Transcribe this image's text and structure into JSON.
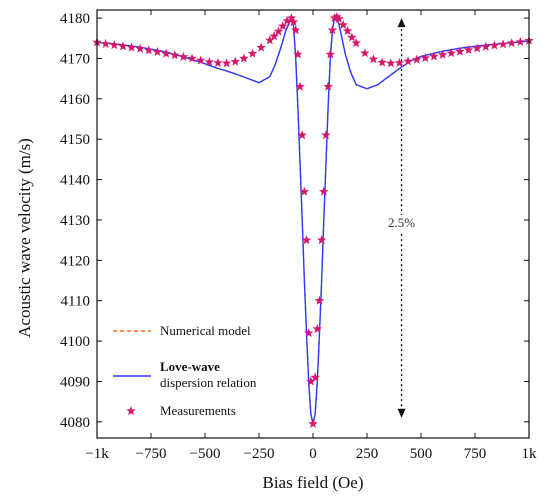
{
  "colors": {
    "numerical": "#ff6a1a",
    "dispersion": "#2a3cff",
    "measurements": "#d6186b",
    "axis": "#111111"
  },
  "chart_data": {
    "type": "line",
    "xlabel": "Bias field (Oe)",
    "ylabel": "Acoustic wave velocity (m/s)",
    "xlim": [
      -1000,
      1000
    ],
    "ylim": [
      4076,
      4182
    ],
    "xticks": [
      -1000,
      -750,
      -500,
      -250,
      0,
      250,
      500,
      750,
      1000
    ],
    "xtick_labels": [
      "−1k",
      "−750",
      "−500",
      "−250",
      "0",
      "250",
      "500",
      "750",
      "1k"
    ],
    "yticks": [
      4080,
      4090,
      4100,
      4110,
      4120,
      4130,
      4140,
      4150,
      4160,
      4170,
      4180
    ],
    "ytick_labels": [
      "4080",
      "4090",
      "4100",
      "4110",
      "4120",
      "4130",
      "4140",
      "4150",
      "4160",
      "4170",
      "4180"
    ],
    "legend": {
      "placement": "bottom-left",
      "numerical": "Numerical model",
      "dispersion_bold": "Love-wave",
      "dispersion_rest": "dispersion relation",
      "measurements": "Measurements"
    },
    "annotation": {
      "text": "2.5%",
      "x": 410,
      "y_top": 4180,
      "y_bottom": 4081,
      "label_y": 4129
    },
    "series": [
      {
        "name": "Numerical model",
        "style": "dashed",
        "x": [
          -1000,
          -900,
          -800,
          -700,
          -600,
          -500,
          -450,
          -400,
          -350,
          -300,
          -250,
          -200,
          -175,
          -150,
          -125,
          -100,
          -90,
          -80,
          -70,
          -60,
          -50,
          -40,
          -30,
          -20,
          -10,
          0,
          10,
          20,
          30,
          40,
          50,
          60,
          70,
          80,
          90,
          100,
          110,
          120,
          130,
          140,
          150,
          175,
          200,
          250,
          300,
          350,
          400,
          450,
          500,
          600,
          700,
          800,
          900,
          1000
        ],
        "y": [
          4174,
          4173.5,
          4172.8,
          4171.8,
          4170.4,
          4168.7,
          4167.7,
          4166.9,
          4166.0,
          4165.0,
          4164.0,
          4165.5,
          4168.5,
          4172.5,
          4177,
          4180,
          4178,
          4170,
          4158,
          4144,
          4130,
          4115,
          4102,
          4090,
          4082,
          4079.5,
          4082,
          4090,
          4102,
          4115,
          4130,
          4144,
          4158,
          4170,
          4177,
          4180.2,
          4180,
          4178.5,
          4176,
          4173.5,
          4171,
          4166.5,
          4163.5,
          4162.5,
          4163.5,
          4165.5,
          4167.5,
          4169.3,
          4170.5,
          4171.8,
          4172.7,
          4173.3,
          4173.8,
          4174.3
        ]
      },
      {
        "name": "Love-wave dispersion relation",
        "style": "solid",
        "x": [
          -1000,
          -900,
          -800,
          -700,
          -600,
          -500,
          -450,
          -400,
          -350,
          -300,
          -250,
          -200,
          -175,
          -150,
          -125,
          -100,
          -90,
          -80,
          -70,
          -60,
          -50,
          -40,
          -30,
          -20,
          -10,
          0,
          10,
          20,
          30,
          40,
          50,
          60,
          70,
          80,
          90,
          100,
          110,
          120,
          130,
          140,
          150,
          175,
          200,
          250,
          300,
          350,
          400,
          450,
          500,
          600,
          700,
          800,
          900,
          1000
        ],
        "y": [
          4174,
          4173.5,
          4172.8,
          4171.8,
          4170.4,
          4168.7,
          4167.7,
          4166.9,
          4166.0,
          4165.0,
          4164.0,
          4165.5,
          4168.5,
          4172.5,
          4177,
          4180,
          4178,
          4170,
          4158,
          4144,
          4130,
          4115,
          4102,
          4090,
          4082,
          4079.5,
          4082,
          4090,
          4102,
          4115,
          4130,
          4144,
          4158,
          4170,
          4177,
          4180.2,
          4180,
          4178.5,
          4176,
          4173.5,
          4171,
          4166.5,
          4163.5,
          4162.5,
          4163.5,
          4165.5,
          4167.5,
          4169.3,
          4170.5,
          4171.8,
          4172.7,
          4173.3,
          4173.8,
          4174.3
        ]
      },
      {
        "name": "Measurements",
        "style": "markers",
        "x": [
          -1000,
          -960,
          -920,
          -880,
          -840,
          -800,
          -760,
          -720,
          -680,
          -640,
          -600,
          -560,
          -520,
          -480,
          -440,
          -400,
          -360,
          -320,
          -280,
          -240,
          -200,
          -180,
          -160,
          -140,
          -120,
          -100,
          -90,
          -80,
          -70,
          -60,
          -50,
          -40,
          -30,
          -20,
          -10,
          0,
          10,
          20,
          30,
          40,
          50,
          60,
          70,
          80,
          90,
          100,
          110,
          120,
          140,
          160,
          180,
          200,
          240,
          280,
          320,
          360,
          400,
          440,
          480,
          520,
          560,
          600,
          640,
          680,
          720,
          760,
          800,
          840,
          880,
          920,
          960,
          1000
        ],
        "y": [
          4174,
          4173.6,
          4173.3,
          4173.0,
          4172.7,
          4172.4,
          4172.0,
          4171.6,
          4171.2,
          4170.8,
          4170.4,
          4170.0,
          4169.5,
          4169.1,
          4168.9,
          4168.8,
          4169.2,
          4170.0,
          4171.2,
          4172.7,
          4174.5,
          4175.5,
          4176.7,
          4178.0,
          4179.3,
          4180,
          4179,
          4177,
          4171,
          4163,
          4151,
          4137,
          4125,
          4102,
          4090,
          4079.5,
          4091,
          4103,
          4110,
          4125,
          4137,
          4151,
          4163,
          4171,
          4177,
          4180,
          4180.3,
          4179.8,
          4178.3,
          4176.8,
          4175.2,
          4173.8,
          4171.3,
          4169.8,
          4169.0,
          4168.8,
          4168.9,
          4169.3,
          4169.7,
          4170.1,
          4170.5,
          4170.9,
          4171.3,
          4171.7,
          4172.1,
          4172.5,
          4172.9,
          4173.2,
          4173.5,
          4173.8,
          4174.1,
          4174.4
        ]
      }
    ]
  }
}
